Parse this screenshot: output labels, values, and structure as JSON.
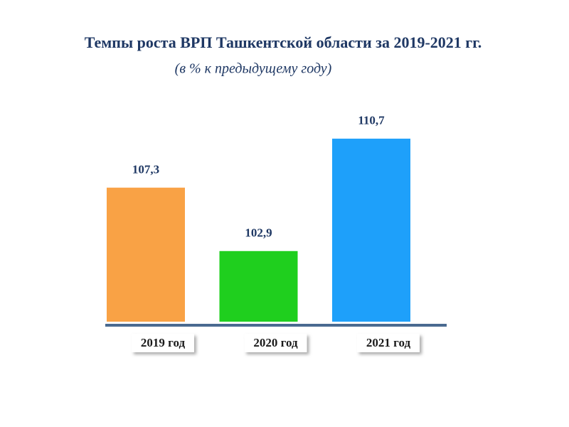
{
  "chart_data": {
    "type": "bar",
    "title": "Темпы роста ВРП Ташкентской области за 2019-2021 гг.",
    "subtitle": "(в % к предыдущему году)",
    "categories": [
      "2019 год",
      "2020 год",
      "2021 год"
    ],
    "values": [
      107.3,
      102.9,
      110.7
    ],
    "value_labels": [
      "107,3",
      "102,9",
      "110,7"
    ],
    "colors": [
      "#f9a245",
      "#1fcf1e",
      "#1ea0fa"
    ],
    "ylim": [
      98,
      112
    ]
  }
}
